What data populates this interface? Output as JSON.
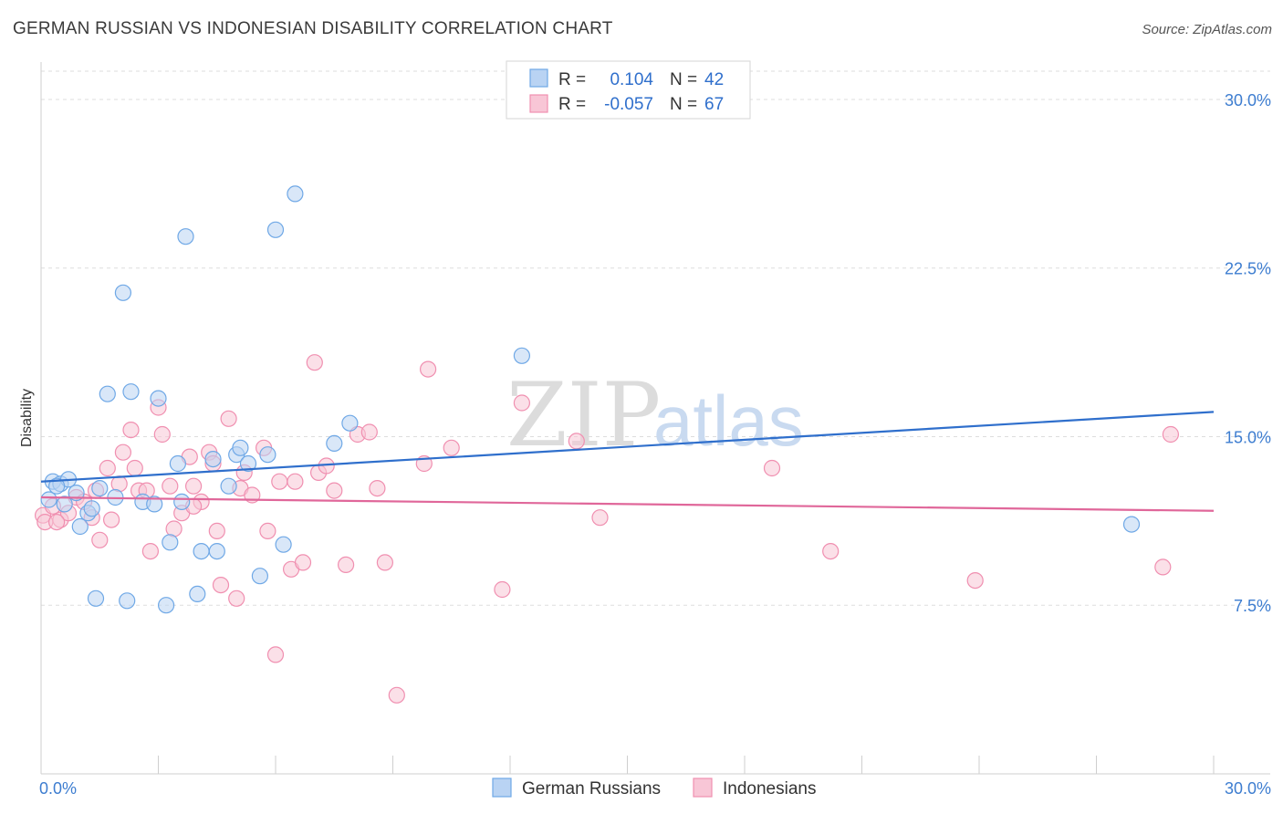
{
  "header": {
    "title": "GERMAN RUSSIAN VS INDONESIAN DISABILITY CORRELATION CHART",
    "source": "Source: ZipAtlas.com"
  },
  "watermark": {
    "zip": "ZIP",
    "atlas": "atlas"
  },
  "colors": {
    "blue": "#6fa8e6",
    "blue_fill": "#b9d3f3",
    "blue_line": "#2f6fcc",
    "pink": "#f08fb0",
    "pink_fill": "#f8c6d6",
    "pink_line": "#e0679a",
    "tick_text": "#3d7dd0",
    "grid": "#dddddd"
  },
  "legend": {
    "rows": [
      {
        "r_label": "R =",
        "r_value": "0.104",
        "n_label": "N =",
        "n_value": "42"
      },
      {
        "r_label": "R =",
        "r_value": "-0.057",
        "n_label": "N =",
        "n_value": "67"
      }
    ]
  },
  "bottom_legend": [
    "German Russians",
    "Indonesians"
  ],
  "chart_data": {
    "type": "scatter",
    "title": "GERMAN RUSSIAN VS INDONESIAN DISABILITY CORRELATION CHART",
    "xlabel": "",
    "ylabel": "Disability",
    "xlim": [
      0,
      30
    ],
    "ylim": [
      0,
      31.5
    ],
    "x_tick_labels": [
      "0.0%",
      "30.0%"
    ],
    "y_ticks": [
      7.5,
      15.0,
      22.5,
      30.0
    ],
    "y_tick_labels": [
      "7.5%",
      "15.0%",
      "22.5%",
      "30.0%"
    ],
    "grid": true,
    "legend_placement": "top-center",
    "series": [
      {
        "name": "German Russians",
        "r": 0.104,
        "n": 42,
        "trend": {
          "x": [
            0,
            30
          ],
          "y": [
            13.0,
            16.1
          ]
        },
        "points": [
          [
            0.2,
            12.2
          ],
          [
            0.3,
            13.0
          ],
          [
            0.5,
            12.9
          ],
          [
            0.7,
            13.1
          ],
          [
            0.6,
            12.0
          ],
          [
            0.9,
            12.5
          ],
          [
            1.0,
            11.0
          ],
          [
            1.2,
            11.6
          ],
          [
            1.3,
            11.8
          ],
          [
            1.5,
            12.7
          ],
          [
            1.9,
            12.3
          ],
          [
            1.7,
            16.9
          ],
          [
            2.1,
            21.4
          ],
          [
            2.3,
            17.0
          ],
          [
            2.6,
            12.1
          ],
          [
            2.9,
            12.0
          ],
          [
            3.0,
            16.7
          ],
          [
            3.2,
            7.5
          ],
          [
            3.3,
            10.3
          ],
          [
            3.5,
            13.8
          ],
          [
            3.6,
            12.1
          ],
          [
            3.7,
            23.9
          ],
          [
            4.0,
            8.0
          ],
          [
            4.1,
            9.9
          ],
          [
            4.4,
            14.0
          ],
          [
            4.5,
            9.9
          ],
          [
            4.8,
            12.8
          ],
          [
            5.0,
            14.2
          ],
          [
            5.1,
            14.5
          ],
          [
            5.3,
            13.8
          ],
          [
            5.6,
            8.8
          ],
          [
            5.8,
            14.2
          ],
          [
            6.0,
            24.2
          ],
          [
            6.2,
            10.2
          ],
          [
            6.5,
            25.8
          ],
          [
            7.5,
            14.7
          ],
          [
            7.9,
            15.6
          ],
          [
            12.3,
            18.6
          ],
          [
            27.9,
            11.1
          ],
          [
            1.4,
            7.8
          ],
          [
            2.2,
            7.7
          ],
          [
            0.4,
            12.8
          ]
        ]
      },
      {
        "name": "Indonesians",
        "r": -0.057,
        "n": 67,
        "trend": {
          "x": [
            0,
            30
          ],
          "y": [
            12.3,
            11.7
          ]
        },
        "points": [
          [
            0.05,
            11.5
          ],
          [
            0.1,
            11.2
          ],
          [
            0.3,
            11.9
          ],
          [
            0.5,
            11.3
          ],
          [
            0.7,
            11.6
          ],
          [
            0.9,
            12.3
          ],
          [
            1.1,
            12.1
          ],
          [
            1.4,
            12.6
          ],
          [
            1.5,
            10.4
          ],
          [
            1.7,
            13.6
          ],
          [
            1.8,
            11.3
          ],
          [
            2.0,
            12.9
          ],
          [
            2.1,
            14.3
          ],
          [
            2.3,
            15.3
          ],
          [
            2.4,
            13.6
          ],
          [
            2.5,
            12.6
          ],
          [
            2.7,
            12.6
          ],
          [
            2.8,
            9.9
          ],
          [
            3.0,
            16.3
          ],
          [
            3.1,
            15.1
          ],
          [
            3.3,
            12.8
          ],
          [
            3.4,
            10.9
          ],
          [
            3.6,
            11.6
          ],
          [
            3.8,
            14.1
          ],
          [
            3.9,
            12.8
          ],
          [
            4.1,
            12.1
          ],
          [
            4.3,
            14.3
          ],
          [
            4.4,
            13.8
          ],
          [
            4.5,
            10.8
          ],
          [
            4.6,
            8.4
          ],
          [
            4.8,
            15.8
          ],
          [
            5.0,
            7.8
          ],
          [
            5.1,
            12.7
          ],
          [
            5.2,
            13.4
          ],
          [
            5.4,
            12.4
          ],
          [
            5.7,
            14.5
          ],
          [
            5.8,
            10.8
          ],
          [
            6.0,
            5.3
          ],
          [
            6.1,
            13.0
          ],
          [
            6.4,
            9.1
          ],
          [
            6.5,
            13.0
          ],
          [
            6.7,
            9.4
          ],
          [
            7.0,
            18.3
          ],
          [
            7.1,
            13.4
          ],
          [
            7.3,
            13.7
          ],
          [
            7.5,
            12.6
          ],
          [
            7.8,
            9.3
          ],
          [
            8.1,
            15.1
          ],
          [
            8.4,
            15.2
          ],
          [
            8.6,
            12.7
          ],
          [
            8.8,
            9.4
          ],
          [
            9.1,
            3.5
          ],
          [
            9.8,
            13.8
          ],
          [
            9.9,
            18.0
          ],
          [
            10.5,
            14.5
          ],
          [
            11.8,
            8.2
          ],
          [
            12.3,
            16.5
          ],
          [
            13.7,
            14.8
          ],
          [
            14.3,
            11.4
          ],
          [
            18.7,
            13.6
          ],
          [
            20.2,
            9.9
          ],
          [
            23.9,
            8.6
          ],
          [
            28.7,
            9.2
          ],
          [
            28.9,
            15.1
          ],
          [
            1.3,
            11.4
          ],
          [
            0.4,
            11.2
          ],
          [
            3.9,
            11.9
          ]
        ]
      }
    ]
  }
}
